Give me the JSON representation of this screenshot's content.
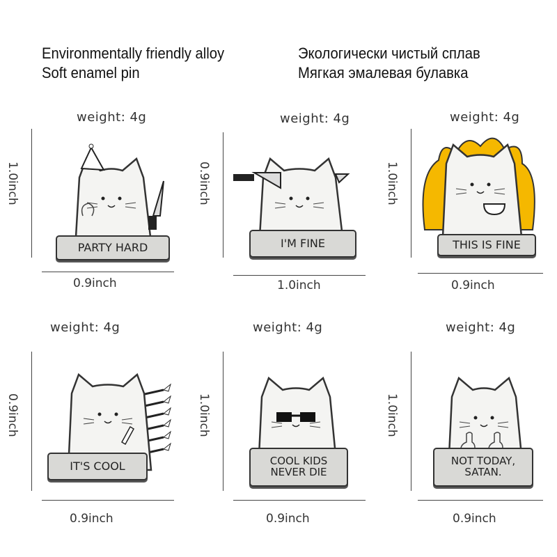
{
  "header": {
    "en_line1": "Environmentally friendly alloy",
    "en_line2": "Soft enamel pin",
    "ru_line1": "Экологически чистый сплав",
    "ru_line2": "Мягкая эмалевая булавка"
  },
  "pins": [
    {
      "weight": "weight:  4g",
      "height_label": "1.0inch",
      "width_label": "0.9inch",
      "banner": "PARTY HARD",
      "accessory": "party-hat-and-knife"
    },
    {
      "weight": "weight:  4g",
      "height_label": "0.9inch",
      "width_label": "1.0inch",
      "banner": "I'M FINE",
      "accessory": "knife-through-head"
    },
    {
      "weight": "weight:  4g",
      "height_label": "1.0inch",
      "width_label": "0.9inch",
      "banner": "THIS IS FINE",
      "accessory": "flames-and-coffee"
    },
    {
      "weight": "weight:  4g",
      "height_label": "0.9inch",
      "width_label": "0.9inch",
      "banner": "IT'S COOL",
      "accessory": "arrows-in-back"
    },
    {
      "weight": "weight:  4g",
      "height_label": "1.0inch",
      "width_label": "0.9inch",
      "banner": "COOL KIDS NEVER DIE",
      "accessory": "sunglasses"
    },
    {
      "weight": "weight:  4g",
      "height_label": "1.0inch",
      "width_label": "0.9inch",
      "banner": "NOT TODAY, SATAN.",
      "accessory": "middle-fingers"
    }
  ],
  "colors": {
    "pin_body": "#f4f4f2",
    "banner": "#d9d9d6",
    "outline": "#333333",
    "flame": "#f5b800"
  }
}
